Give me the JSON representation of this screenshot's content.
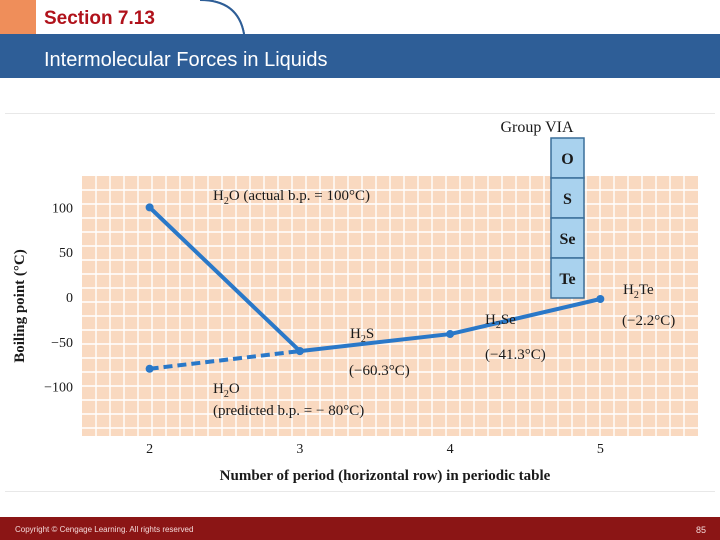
{
  "header": {
    "section": "Section 7.13",
    "title": "Intermolecular Forces in Liquids"
  },
  "footer": {
    "copyright": "Copyright © Cengage Learning. All rights reserved",
    "page": "85"
  },
  "colors": {
    "header_blue": "#2e5e97",
    "footer_red": "#8b1515",
    "plot_bg": "#f9d9c0",
    "line_blue": "#2a78c8",
    "table_blue": "#a9d2ee"
  },
  "chart_data": {
    "type": "line",
    "title": "",
    "xlabel": "Number of period (horizontal row) in periodic table",
    "ylabel": "Boiling point (°C)",
    "x_ticks": [
      "2",
      "3",
      "4",
      "5"
    ],
    "y_ticks": [
      "100",
      "50",
      "0",
      "−50",
      "−100"
    ],
    "xlim": [
      1.55,
      5.65
    ],
    "ylim": [
      -155,
      135
    ],
    "grid": true,
    "series": [
      {
        "name": "",
        "style": "solid",
        "x": [
          2,
          3,
          4,
          5
        ],
        "y": [
          100,
          -60.3,
          -41.3,
          -2.2
        ]
      },
      {
        "name": "",
        "style": "dashed",
        "x": [
          2,
          3
        ],
        "y": [
          -80,
          -60.3
        ]
      }
    ],
    "point_labels": [
      {
        "formula": "H",
        "sub": "2",
        "rest": "O (actual b.p. = 100°C)"
      },
      {
        "formula": "H",
        "sub": "2",
        "rest": "S",
        "value": "(−60.3°C)"
      },
      {
        "formula": "H",
        "sub": "2",
        "rest": "Se",
        "value": "(−41.3°C)"
      },
      {
        "formula": "H",
        "sub": "2",
        "rest": "Te",
        "value": "(−2.2°C)"
      },
      {
        "formula": "H",
        "sub": "2",
        "rest": "O",
        "value": "(predicted b.p. = − 80°C)"
      }
    ],
    "group_table": {
      "title": "Group  VIA",
      "elements": [
        "O",
        "S",
        "Se",
        "Te"
      ]
    }
  }
}
